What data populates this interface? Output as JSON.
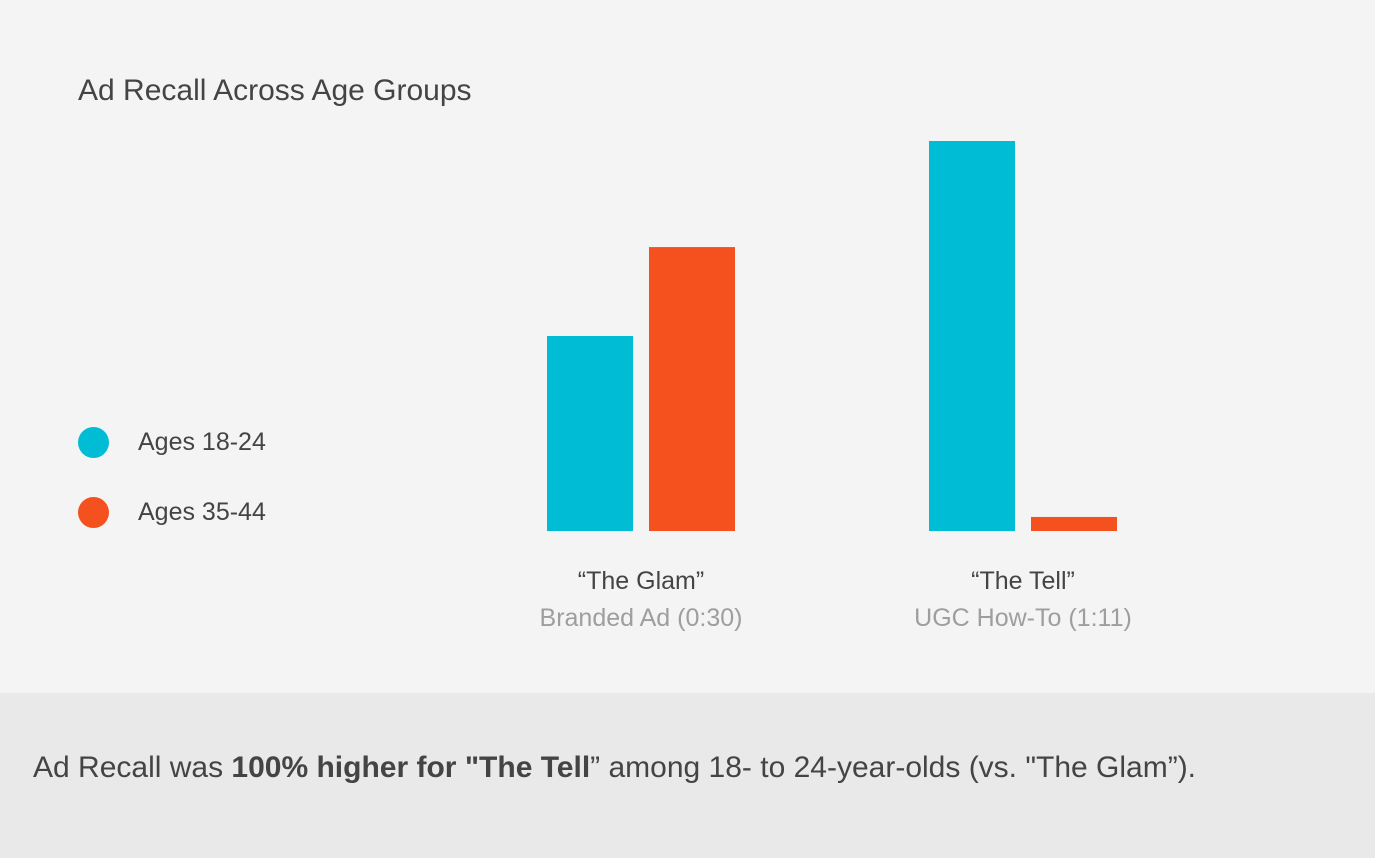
{
  "chart_data": {
    "type": "bar",
    "title": "Ad Recall Across Age Groups",
    "categories": [
      {
        "name": "“The Glam”",
        "sub": "Branded Ad (0:30)"
      },
      {
        "name": "“The Tell”",
        "sub": "UGC How-To (1:11)"
      }
    ],
    "series": [
      {
        "name": "Ages 18-24",
        "color": "#00bcd4",
        "values": [
          50,
          100
        ]
      },
      {
        "name": "Ages 35-44",
        "color": "#f4511e",
        "values": [
          72.8,
          3.6
        ]
      }
    ],
    "ylim": [
      0,
      100
    ],
    "xlabel": "",
    "ylabel": "",
    "grid": false,
    "legend_position": "left"
  },
  "caption": {
    "pre": "Ad Recall was ",
    "bold": "100% higher for \"The Tell",
    "post": "” among 18- to 24-year-olds (vs. \"The Glam”)."
  }
}
